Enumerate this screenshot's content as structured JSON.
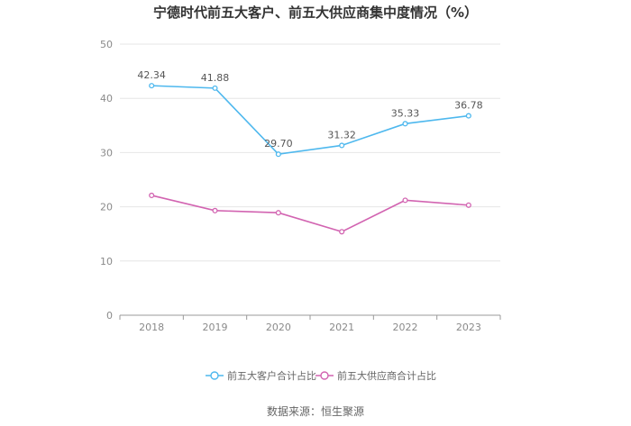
{
  "title": "宁德时代前五大客户、前五大供应商集中度情况（%）",
  "source": "数据来源：恒生聚源",
  "colors": {
    "series1": "#4eb8ee",
    "series2": "#d264b1",
    "grid": "#e6e6e6",
    "axis": "#999999"
  },
  "chart_data": {
    "type": "line",
    "title": "宁德时代前五大客户、前五大供应商集中度情况（%）",
    "categories": [
      "2018",
      "2019",
      "2020",
      "2021",
      "2022",
      "2023"
    ],
    "ylim": [
      0,
      50
    ],
    "yticks": [
      0,
      10,
      20,
      30,
      40,
      50
    ],
    "grid": true,
    "legend_position": "bottom",
    "series": [
      {
        "name": "前五大客户合计占比",
        "values": [
          42.34,
          41.88,
          29.7,
          31.32,
          35.33,
          36.78
        ],
        "labels": [
          "42.34",
          "41.88",
          "29.70",
          "31.32",
          "35.33",
          "36.78"
        ],
        "show_labels": true,
        "color": "#4eb8ee"
      },
      {
        "name": "前五大供应商合计占比",
        "values": [
          22.1,
          19.3,
          18.9,
          15.4,
          21.2,
          20.3
        ],
        "show_labels": false,
        "color": "#d264b1"
      }
    ]
  }
}
